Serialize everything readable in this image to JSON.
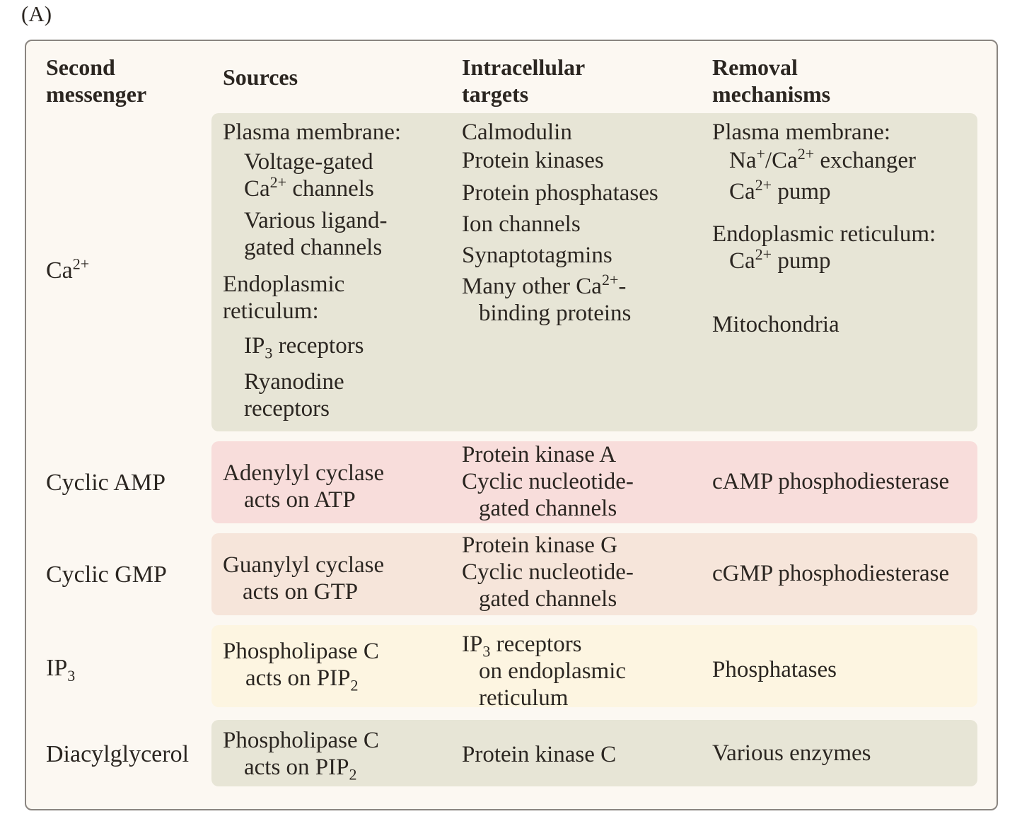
{
  "panel_label": "(A)",
  "headers": {
    "messenger": "Second\nmessenger",
    "sources": "Sources",
    "targets": "Intracellular\ntargets",
    "removal": "Removal\nmechanisms"
  },
  "colors": {
    "ca_band": "#e7e5d6",
    "camp_band": "#f8dddb",
    "cgmp_band": "#f6e5da",
    "ip3_band": "#fdf5e1",
    "dag_band": "#e7e5d6"
  },
  "rows": {
    "ca": {
      "label": "Ca",
      "label_sup": "2+",
      "sources": {
        "pm": "Plasma membrane:",
        "vg1": "Voltage-gated",
        "vg2_pre": "Ca",
        "vg2_sup": "2+",
        "vg2_post": " channels",
        "lg1": "Various ligand-",
        "lg2": "gated channels",
        "er1": "Endoplasmic",
        "er2": "reticulum:",
        "ip3_pre": "IP",
        "ip3_sub": "3",
        "ip3_post": " receptors",
        "ry1": "Ryanodine",
        "ry2": "receptors"
      },
      "targets": {
        "t1": "Calmodulin",
        "t2": "Protein kinases",
        "t3": "Protein phosphatases",
        "t4": "Ion channels",
        "t5": "Synaptotagmins",
        "t6_pre": "Many other Ca",
        "t6_sup": "2+",
        "t6_post": "-",
        "t7": "binding proteins"
      },
      "removal": {
        "pm": "Plasma membrane:",
        "ex_na": "Na",
        "ex_na_sup": "+",
        "ex_mid": "/Ca",
        "ex_ca_sup": "2+",
        "ex_post": " exchanger",
        "pump1_pre": "Ca",
        "pump1_sup": "2+",
        "pump1_post": " pump",
        "er": "Endoplasmic reticulum:",
        "pump2_pre": "Ca",
        "pump2_sup": "2+",
        "pump2_post": " pump",
        "mito": "Mitochondria"
      }
    },
    "camp": {
      "label": "Cyclic AMP",
      "src1": "Adenylyl cyclase",
      "src2": "acts on ATP",
      "t1": "Protein kinase A",
      "t2": "Cyclic nucleotide-",
      "t3": "gated channels",
      "removal": "cAMP phosphodiesterase"
    },
    "cgmp": {
      "label": "Cyclic GMP",
      "src1": "Guanylyl cyclase",
      "src2": "acts on GTP",
      "t1": "Protein kinase G",
      "t2": "Cyclic nucleotide-",
      "t3": "gated channels",
      "removal": "cGMP phosphodiesterase"
    },
    "ip3": {
      "label": "IP",
      "label_sub": "3",
      "src1": "Phospholipase C",
      "src2_pre": "acts on PIP",
      "src2_sub": "2",
      "t1_pre": "IP",
      "t1_sub": "3",
      "t1_post": " receptors",
      "t2": "on endoplasmic",
      "t3": "reticulum",
      "removal": "Phosphatases"
    },
    "dag": {
      "label": "Diacylglycerol",
      "src1": "Phospholipase C",
      "src2_pre": "acts on PIP",
      "src2_sub": "2",
      "target": "Protein kinase C",
      "removal": "Various enzymes"
    }
  }
}
